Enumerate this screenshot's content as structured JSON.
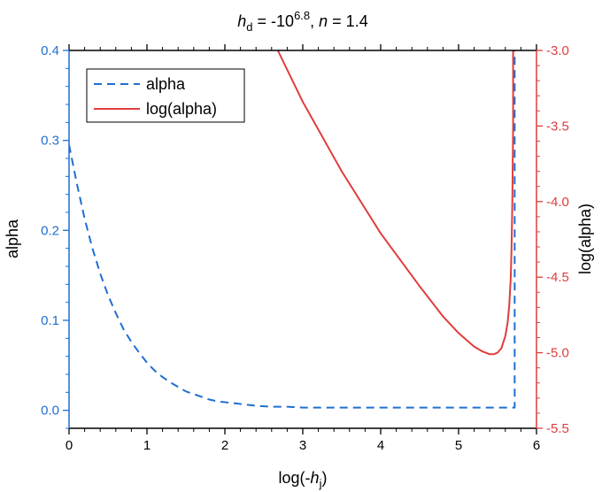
{
  "chart_data": {
    "type": "line",
    "title": {
      "text": "h_d = -10^6.8, n = 1.4",
      "parts": {
        "h": "h",
        "h_sub": "d",
        "eq": " = -10",
        "exp": "6.8",
        "comma": ", ",
        "n": "n",
        "n_eq": " = 1.4"
      }
    },
    "xlabel": {
      "text": "log(-h_j)",
      "parts": {
        "prefix": "log(-",
        "h": "h",
        "sub": "j",
        "suffix": ")"
      }
    },
    "ylabel_left": "alpha",
    "ylabel_right": "log(alpha)",
    "xlim": [
      0,
      6
    ],
    "ylim_left": [
      -0.02,
      0.4
    ],
    "ylim_right": [
      -5.5,
      -3.0
    ],
    "x_ticks": [
      0,
      1,
      2,
      3,
      4,
      5,
      6
    ],
    "x_tick_labels": [
      "0",
      "1",
      "2",
      "3",
      "4",
      "5",
      "6"
    ],
    "y_left_ticks": [
      0.0,
      0.1,
      0.2,
      0.3,
      0.4
    ],
    "y_left_tick_labels": [
      "0.0",
      "0.1",
      "0.2",
      "0.3",
      "0.4"
    ],
    "y_right_ticks": [
      -3.0,
      -3.5,
      -4.0,
      -4.5,
      -5.0,
      -5.5
    ],
    "y_right_tick_labels": [
      "-3.0",
      "-3.5",
      "-4.0",
      "-4.5",
      "-5.0",
      "-5.5"
    ],
    "colors": {
      "alpha": "#1f6fd1",
      "log_alpha": "#e03c3c",
      "left_axis": "#1f6fd1",
      "right_axis": "#e03c3c",
      "frame": "#000000"
    },
    "legend": {
      "position": "top-left",
      "entries": [
        {
          "label": "alpha",
          "style": "dashed",
          "color": "#1f6fd1"
        },
        {
          "label": "log(alpha)",
          "style": "solid",
          "color": "#e03c3c"
        }
      ]
    },
    "grid": false,
    "series": [
      {
        "name": "alpha",
        "axis": "left",
        "style": "dashed",
        "x": [
          0,
          0.1,
          0.2,
          0.3,
          0.4,
          0.5,
          0.6,
          0.7,
          0.8,
          0.9,
          1.0,
          1.1,
          1.2,
          1.3,
          1.4,
          1.5,
          1.6,
          1.7,
          1.8,
          1.9,
          2.0,
          2.2,
          2.4,
          2.6,
          2.8,
          3.0,
          3.5,
          4.0,
          4.5,
          5.0,
          5.5,
          5.7,
          5.72,
          5.72
        ],
        "y": [
          0.295,
          0.252,
          0.213,
          0.18,
          0.152,
          0.128,
          0.108,
          0.09,
          0.076,
          0.064,
          0.053,
          0.044,
          0.037,
          0.031,
          0.026,
          0.021,
          0.018,
          0.015,
          0.012,
          0.01,
          0.009,
          0.007,
          0.005,
          0.004,
          0.004,
          0.003,
          0.003,
          0.003,
          0.003,
          0.003,
          0.003,
          0.003,
          0.003,
          0.4
        ]
      },
      {
        "name": "log(alpha)",
        "axis": "right",
        "style": "solid",
        "x": [
          2.68,
          3.0,
          3.5,
          4.0,
          4.5,
          4.8,
          5.0,
          5.2,
          5.3,
          5.4,
          5.45,
          5.5,
          5.55,
          5.6,
          5.63,
          5.65,
          5.67,
          5.68,
          5.69,
          5.7,
          5.7
        ],
        "y": [
          -3.0,
          -3.34,
          -3.8,
          -4.21,
          -4.56,
          -4.76,
          -4.87,
          -4.96,
          -4.99,
          -5.01,
          -5.01,
          -5.0,
          -4.97,
          -4.89,
          -4.8,
          -4.69,
          -4.5,
          -4.3,
          -4.0,
          -3.5,
          -3.0
        ]
      }
    ]
  }
}
